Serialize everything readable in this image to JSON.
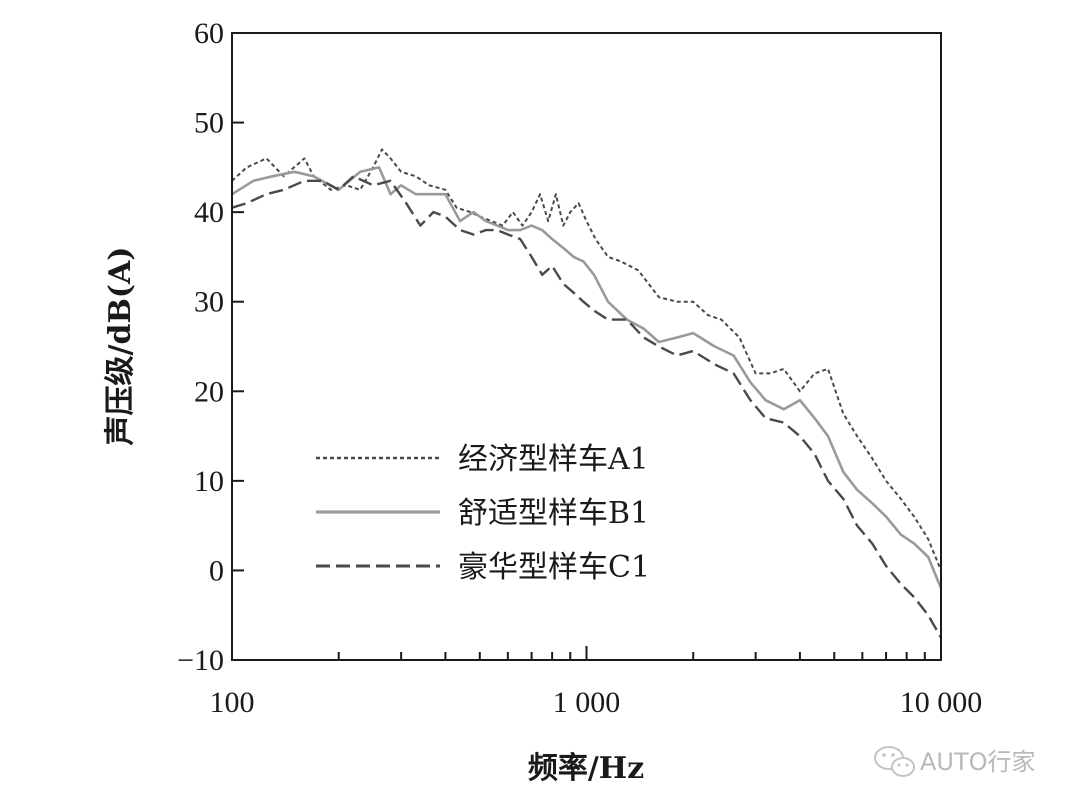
{
  "chart_data": {
    "type": "line",
    "xlabel": "频率/Hz",
    "ylabel": "声压级/dB(A)",
    "xscale": "log",
    "xlim": [
      100,
      10000
    ],
    "ylim": [
      -10,
      60
    ],
    "x_ticks": [
      {
        "value": 100,
        "label": "100"
      },
      {
        "value": 1000,
        "label": "1 000"
      },
      {
        "value": 10000,
        "label": "10 000"
      }
    ],
    "y_ticks": [
      {
        "value": 60,
        "label": "60"
      },
      {
        "value": 50,
        "label": "50"
      },
      {
        "value": 40,
        "label": "40"
      },
      {
        "value": 30,
        "label": "30"
      },
      {
        "value": 20,
        "label": "20"
      },
      {
        "value": 10,
        "label": "10"
      },
      {
        "value": 0,
        "label": "0"
      },
      {
        "value": -10,
        "label": "−10"
      }
    ],
    "grid": false,
    "legend_position": "lower-left",
    "series": [
      {
        "name": "经济型样车A1",
        "color": "#4a4a4a",
        "style": "dotted",
        "x": [
          100,
          110,
          125,
          140,
          160,
          170,
          190,
          210,
          230,
          250,
          265,
          280,
          300,
          330,
          360,
          400,
          430,
          470,
          500,
          540,
          580,
          620,
          660,
          700,
          740,
          780,
          820,
          860,
          900,
          950,
          1000,
          1060,
          1150,
          1250,
          1400,
          1600,
          1800,
          2000,
          2200,
          2400,
          2700,
          3000,
          3300,
          3600,
          4000,
          4400,
          4800,
          5300,
          5800,
          6400,
          7000,
          7700,
          8400,
          9200,
          10000
        ],
        "y": [
          43.5,
          45,
          46,
          44,
          46,
          44,
          42.5,
          43,
          42.5,
          45,
          47,
          46,
          44.5,
          44,
          43,
          42.5,
          40.5,
          40,
          39.5,
          39,
          38.5,
          40,
          38.5,
          40,
          42,
          39,
          42,
          38.5,
          40,
          41,
          39,
          37,
          35,
          34.5,
          33.5,
          30.5,
          30,
          30,
          28.5,
          28,
          26,
          22,
          22,
          22.5,
          20,
          22,
          22.5,
          17.5,
          15,
          12.5,
          10,
          8,
          6,
          3.5,
          0
        ]
      },
      {
        "name": "舒适型样车B1",
        "color": "#9a9a9a",
        "style": "solid",
        "x": [
          100,
          115,
          130,
          150,
          170,
          200,
          230,
          260,
          280,
          300,
          330,
          360,
          400,
          440,
          480,
          520,
          560,
          600,
          650,
          700,
          750,
          800,
          860,
          920,
          980,
          1050,
          1150,
          1300,
          1450,
          1600,
          1800,
          2000,
          2300,
          2600,
          2900,
          3200,
          3600,
          4000,
          4400,
          4800,
          5300,
          5800,
          6400,
          7000,
          7700,
          8400,
          9200,
          10000
        ],
        "y": [
          42,
          43.5,
          44,
          44.5,
          44,
          42.5,
          44.5,
          45,
          42,
          43,
          42,
          42,
          42,
          39,
          40,
          39,
          38.5,
          38,
          38,
          38.5,
          38,
          37,
          36,
          35,
          34.5,
          33,
          30,
          28,
          27,
          25.5,
          26,
          26.5,
          25,
          24,
          21,
          19,
          18,
          19,
          17,
          15,
          11,
          9,
          7.5,
          6,
          4,
          3,
          1.5,
          -2
        ]
      },
      {
        "name": "豪华型样车C1",
        "color": "#4a4a4a",
        "style": "dashed",
        "x": [
          100,
          110,
          125,
          140,
          160,
          180,
          200,
          220,
          250,
          280,
          310,
          340,
          370,
          400,
          440,
          480,
          520,
          560,
          600,
          650,
          700,
          750,
          800,
          860,
          920,
          980,
          1050,
          1150,
          1300,
          1450,
          1600,
          1800,
          2000,
          2300,
          2600,
          2900,
          3200,
          3600,
          4000,
          4400,
          4800,
          5300,
          5800,
          6400,
          7000,
          7700,
          8400,
          9200,
          10000
        ],
        "y": [
          40.5,
          41,
          42,
          42.5,
          43.5,
          43.5,
          42.5,
          44,
          43,
          43.5,
          41,
          38.5,
          40,
          39.5,
          38,
          37.5,
          38,
          38,
          37.5,
          37,
          35,
          33,
          34,
          32,
          31,
          30,
          29,
          28,
          28,
          26,
          25,
          24,
          24.5,
          23,
          22,
          19,
          17,
          16.5,
          15,
          13,
          10,
          8,
          5,
          3,
          0.5,
          -1.5,
          -3,
          -5,
          -7.5
        ]
      }
    ]
  },
  "watermark": "AUTO行家"
}
